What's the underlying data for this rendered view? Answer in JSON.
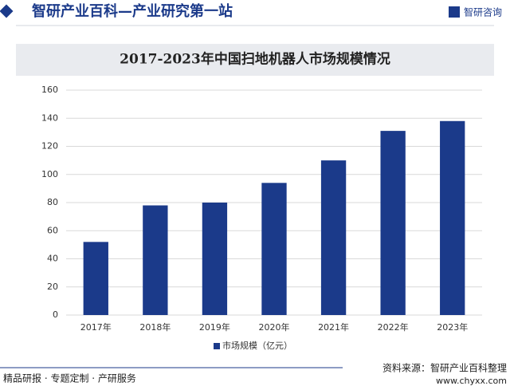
{
  "header": {
    "title": "智研产业百科—产业研究第一站",
    "logo": "智研咨询"
  },
  "footer": {
    "left": "精品研报 · 专题定制 · 产研服务",
    "source": "资料来源：智研产业百科整理",
    "url": "www.chyxx.com"
  },
  "chart_data": {
    "type": "bar",
    "title": "2017-2023年中国扫地机器人市场规模情况",
    "categories": [
      "2017年",
      "2018年",
      "2019年",
      "2020年",
      "2021年",
      "2022年",
      "2023年"
    ],
    "series": [
      {
        "name": "市场规模（亿元）",
        "color": "#1b3a8a",
        "values": [
          52,
          78,
          80,
          94,
          110,
          131,
          138
        ]
      }
    ],
    "ylim": [
      0,
      160
    ],
    "yticks": [
      0,
      20,
      40,
      60,
      80,
      100,
      120,
      140,
      160
    ],
    "grid": true,
    "legend": "bottom"
  }
}
